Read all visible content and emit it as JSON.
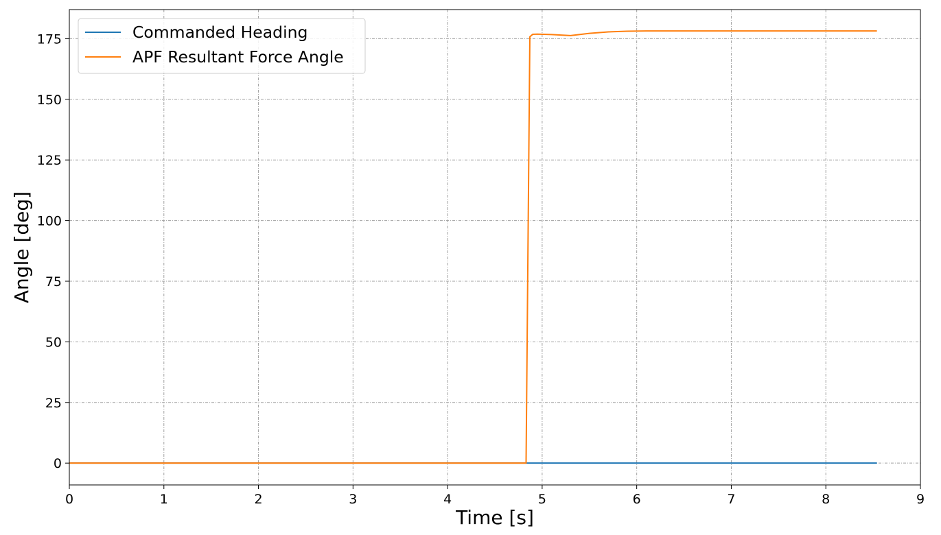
{
  "chart_data": {
    "type": "line",
    "title": "",
    "xlabel": "Time [s]",
    "ylabel": "Angle [deg]",
    "xlim": [
      0,
      9
    ],
    "ylim": [
      -9,
      187
    ],
    "xticks": [
      0,
      1,
      2,
      3,
      4,
      5,
      6,
      7,
      8,
      9
    ],
    "yticks": [
      0,
      25,
      50,
      75,
      100,
      125,
      150,
      175
    ],
    "grid": true,
    "legend_position": "top-left",
    "series": [
      {
        "name": "Commanded Heading",
        "color": "#1f77b4",
        "x": [
          0,
          8.54
        ],
        "y": [
          0,
          0
        ]
      },
      {
        "name": "APF Resultant Force Angle",
        "color": "#ff7f0e",
        "x": [
          0,
          4.83,
          4.87,
          4.9,
          4.95,
          5.1,
          5.3,
          5.5,
          5.7,
          5.9,
          6.1,
          6.5,
          7.0,
          7.5,
          8.0,
          8.54
        ],
        "y": [
          0,
          0,
          175.8,
          176.8,
          176.9,
          176.7,
          176.3,
          177.2,
          177.8,
          178.1,
          178.2,
          178.2,
          178.2,
          178.2,
          178.2,
          178.2
        ]
      }
    ]
  }
}
